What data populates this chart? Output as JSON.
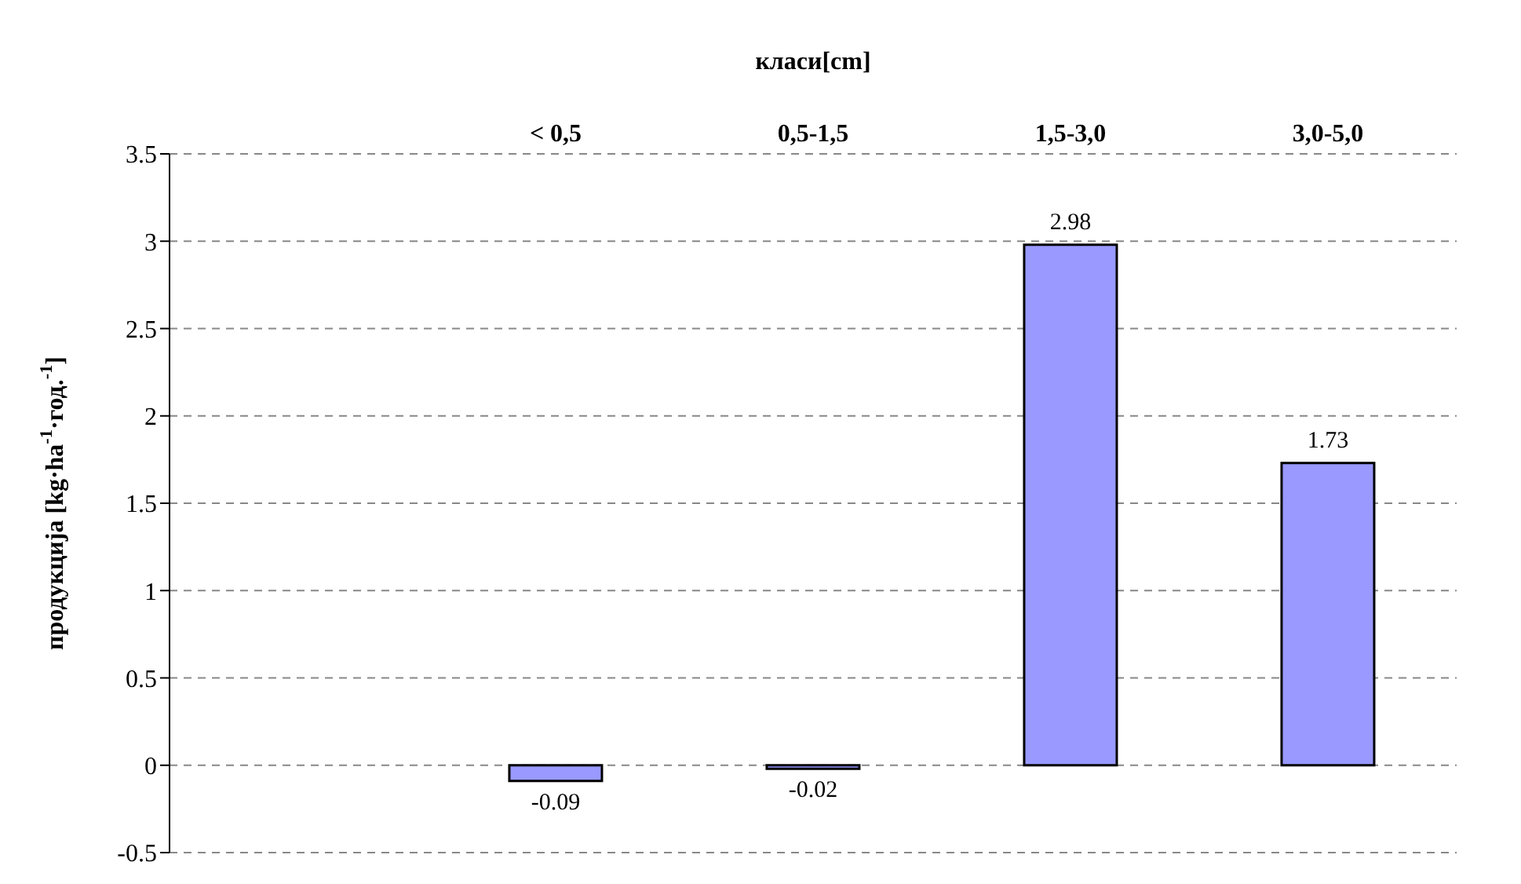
{
  "chart_data": {
    "type": "bar",
    "xlabel": "класи[cm]",
    "ylabel": "продукција [kg·ha$^{-1}$·год.$^{-1}$]",
    "categories": [
      null,
      "< 0,5",
      "0,5-1,5",
      "1,5-3,0",
      "3,0-5,0"
    ],
    "values": [
      null,
      -0.09,
      -0.02,
      2.98,
      1.73
    ],
    "color": "#9999ff",
    "ylim": [
      -0.5,
      3.5
    ],
    "yticks": [
      -0.5,
      0,
      0.5,
      1,
      1.5,
      2,
      2.5,
      3,
      3.5
    ],
    "grid": "y",
    "data_labels": true
  }
}
